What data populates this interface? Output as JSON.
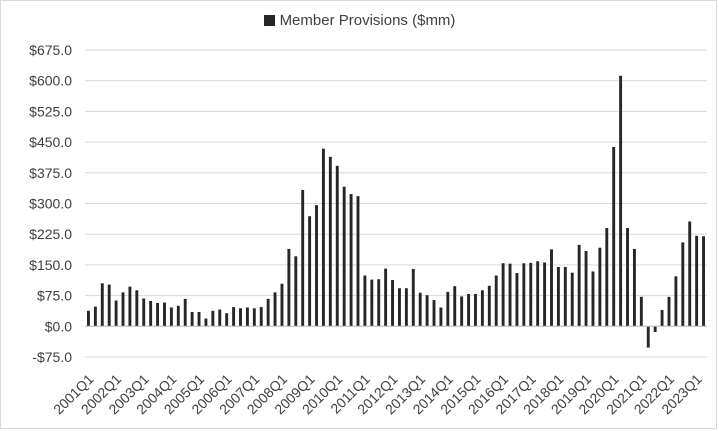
{
  "chart_data": {
    "type": "bar",
    "title": "",
    "legend": {
      "position": "top-center",
      "entries": [
        "Member Provisions ($mm)"
      ]
    },
    "series": [
      {
        "name": "Member Provisions ($mm)",
        "color": "#262626",
        "values": [
          38,
          48,
          105,
          102,
          63,
          83,
          97,
          88,
          68,
          62,
          57,
          58,
          46,
          50,
          67,
          35,
          35,
          19,
          38,
          41,
          32,
          47,
          44,
          46,
          44,
          47,
          67,
          83,
          104,
          189,
          171,
          333,
          269,
          296,
          434,
          414,
          392,
          341,
          323,
          318,
          124,
          114,
          115,
          141,
          113,
          93,
          93,
          140,
          82,
          76,
          64,
          46,
          84,
          98,
          73,
          79,
          79,
          88,
          99,
          124,
          154,
          153,
          130,
          154,
          155,
          159,
          156,
          188,
          145,
          145,
          131,
          199,
          184,
          134,
          192,
          240,
          438,
          612,
          240,
          189,
          72,
          -52,
          -14,
          40,
          72,
          122,
          205,
          256,
          221,
          220
        ]
      }
    ],
    "x_start": "2001Q1",
    "x_tick_labels": [
      "2001Q1",
      "2002Q1",
      "2003Q1",
      "2004Q1",
      "2005Q1",
      "2006Q1",
      "2007Q1",
      "2008Q1",
      "2009Q1",
      "2010Q1",
      "2011Q1",
      "2012Q1",
      "2013Q1",
      "2014Q1",
      "2015Q1",
      "2016Q1",
      "2017Q1",
      "2018Q1",
      "2019Q1",
      "2020Q1",
      "2021Q1",
      "2022Q1",
      "2023Q1"
    ],
    "y_ticks": [
      -75,
      0,
      75,
      150,
      225,
      300,
      375,
      450,
      525,
      600,
      675
    ],
    "y_tick_labels": [
      "-$75.0",
      "$0.0",
      "$75.0",
      "$150.0",
      "$225.0",
      "$300.0",
      "$375.0",
      "$450.0",
      "$525.0",
      "$600.0",
      "$675.0"
    ],
    "ylim": [
      -75,
      675
    ],
    "xlabel": "",
    "ylabel": "",
    "grid": "horizontal"
  }
}
